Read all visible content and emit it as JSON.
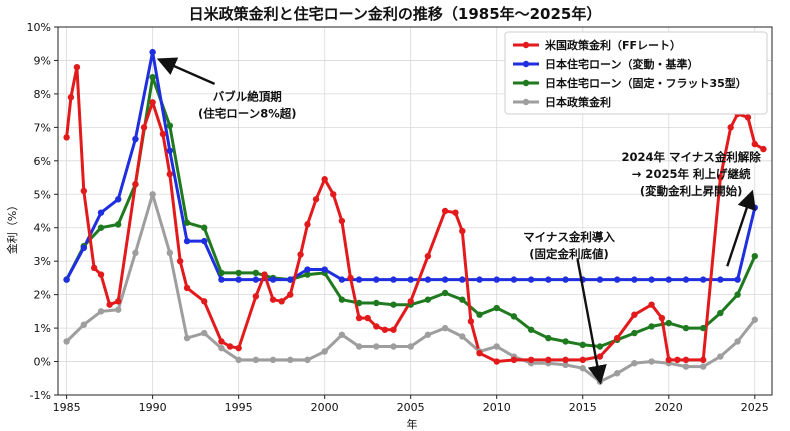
{
  "chart_data": {
    "type": "line",
    "title": "日米政策金利と住宅ローン金利の推移（1985年～2025年）",
    "xlabel": "年",
    "ylabel": "金利（%）",
    "xlim": [
      1984.5,
      2026.0
    ],
    "ylim": [
      -1,
      10
    ],
    "x_ticks": [
      1985,
      1990,
      1995,
      2000,
      2005,
      2010,
      2015,
      2020,
      2025
    ],
    "y_ticks": [
      -1,
      0,
      1,
      2,
      3,
      4,
      5,
      6,
      7,
      8,
      9,
      10
    ],
    "y_tick_labels": [
      "-1%",
      "0%",
      "1%",
      "2%",
      "3%",
      "4%",
      "5%",
      "6%",
      "7%",
      "8%",
      "9%",
      "10%"
    ],
    "grid": true,
    "legend_position": "top-right",
    "series": [
      {
        "name": "米国政策金利（FFレート）",
        "color": "#e31a1c",
        "x": [
          1985,
          1985.25,
          1985.6,
          1986,
          1986.6,
          1987,
          1987.5,
          1988,
          1989,
          1989.5,
          1990,
          1990.6,
          1991,
          1991.6,
          1992,
          1993,
          1994,
          1994.5,
          1995,
          1996,
          1996.5,
          1997,
          1997.5,
          1998,
          1998.6,
          1999,
          1999.5,
          2000,
          2000.5,
          2001,
          2001.5,
          2002,
          2002.5,
          2003,
          2003.5,
          2004,
          2005,
          2006,
          2007,
          2007.6,
          2008,
          2008.5,
          2009,
          2010,
          2011,
          2012,
          2013,
          2014,
          2015,
          2016,
          2017,
          2018,
          2019,
          2019.6,
          2020,
          2020.5,
          2021,
          2022,
          2023,
          2023.6,
          2024,
          2024.6,
          2025,
          2025.5
        ],
        "values": [
          6.7,
          7.9,
          8.8,
          5.1,
          2.8,
          2.6,
          1.7,
          1.8,
          5.3,
          7.0,
          7.75,
          6.8,
          5.6,
          3.0,
          2.2,
          1.8,
          0.6,
          0.45,
          0.4,
          1.95,
          2.6,
          1.85,
          1.8,
          2.0,
          3.2,
          4.1,
          4.85,
          5.45,
          5.0,
          4.2,
          2.5,
          1.3,
          1.3,
          1.05,
          0.95,
          0.95,
          1.8,
          3.15,
          4.5,
          4.45,
          3.9,
          1.2,
          0.25,
          0.0,
          0.05,
          0.05,
          0.05,
          0.05,
          0.05,
          0.15,
          0.7,
          1.4,
          1.7,
          1.3,
          0.05,
          0.05,
          0.05,
          0.05,
          5.5,
          7.0,
          7.4,
          7.3,
          6.5,
          6.35
        ]
      },
      {
        "name": "日本住宅ローン（変動・基準）",
        "color": "#1f2fe0",
        "x": [
          1985,
          1986,
          1987,
          1988,
          1989,
          1990,
          1991,
          1992,
          1993,
          1994,
          1995,
          1996,
          1997,
          1998,
          1999,
          2000,
          2001,
          2002,
          2003,
          2004,
          2005,
          2006,
          2007,
          2008,
          2009,
          2010,
          2011,
          2012,
          2013,
          2014,
          2015,
          2016,
          2017,
          2018,
          2019,
          2020,
          2021,
          2022,
          2023,
          2024,
          2025
        ],
        "values": [
          2.45,
          3.4,
          4.45,
          4.85,
          6.65,
          9.25,
          6.3,
          3.6,
          3.6,
          2.45,
          2.45,
          2.45,
          2.45,
          2.45,
          2.75,
          2.75,
          2.45,
          2.45,
          2.45,
          2.45,
          2.45,
          2.45,
          2.45,
          2.45,
          2.45,
          2.45,
          2.45,
          2.45,
          2.45,
          2.45,
          2.45,
          2.45,
          2.45,
          2.45,
          2.45,
          2.45,
          2.45,
          2.45,
          2.45,
          2.45,
          4.6
        ]
      },
      {
        "name": "日本住宅ローン（固定・フラット35型）",
        "color": "#1f7a1f",
        "x": [
          1985,
          1986,
          1987,
          1988,
          1989,
          1990,
          1991,
          1992,
          1993,
          1994,
          1995,
          1996,
          1997,
          1998,
          1999,
          2000,
          2001,
          2002,
          2003,
          2004,
          2005,
          2006,
          2007,
          2008,
          2009,
          2010,
          2011,
          2012,
          2013,
          2014,
          2015,
          2016,
          2017,
          2018,
          2019,
          2020,
          2021,
          2022,
          2023,
          2024,
          2025
        ],
        "values": [
          2.45,
          3.45,
          4.0,
          4.1,
          5.3,
          8.5,
          7.05,
          4.15,
          4.0,
          2.65,
          2.65,
          2.65,
          2.5,
          2.45,
          2.6,
          2.65,
          1.85,
          1.75,
          1.75,
          1.7,
          1.7,
          1.85,
          2.05,
          1.85,
          1.4,
          1.6,
          1.35,
          0.95,
          0.7,
          0.6,
          0.5,
          0.45,
          0.65,
          0.85,
          1.05,
          1.15,
          1.0,
          1.0,
          1.45,
          2.0,
          3.15
        ]
      },
      {
        "name": "日本政策金利",
        "color": "#9e9e9e",
        "x": [
          1985,
          1986,
          1987,
          1988,
          1989,
          1990,
          1991,
          1992,
          1993,
          1994,
          1995,
          1996,
          1997,
          1998,
          1999,
          2000,
          2001,
          2002,
          2003,
          2004,
          2005,
          2006,
          2007,
          2008,
          2009,
          2010,
          2011,
          2012,
          2013,
          2014,
          2015,
          2016,
          2017,
          2018,
          2019,
          2020,
          2021,
          2022,
          2023,
          2024,
          2025
        ],
        "values": [
          0.6,
          1.1,
          1.5,
          1.55,
          3.25,
          5.0,
          3.25,
          0.7,
          0.85,
          0.4,
          0.05,
          0.05,
          0.05,
          0.05,
          0.05,
          0.3,
          0.8,
          0.45,
          0.45,
          0.45,
          0.45,
          0.8,
          1.0,
          0.75,
          0.3,
          0.45,
          0.15,
          -0.05,
          -0.05,
          -0.1,
          -0.2,
          -0.6,
          -0.35,
          -0.05,
          0.0,
          -0.05,
          -0.15,
          -0.15,
          0.15,
          0.6,
          1.25
        ]
      }
    ],
    "annotations": [
      {
        "lines": [
          "バブル絶頂期",
          "(住宅ローン8%超)"
        ],
        "target": [
          1990.5,
          9.0
        ],
        "text_at": [
          1995.5,
          7.8
        ]
      },
      {
        "lines": [
          "マイナス金利導入",
          "(固定金利底値)"
        ],
        "target": [
          2016,
          -0.55
        ],
        "text_at": [
          2014.2,
          3.6
        ]
      },
      {
        "lines": [
          "2024年 マイナス金利解除",
          "→ 2025年 利上げ継続",
          "(変動金利上昇開始)"
        ],
        "target": [
          2024.8,
          5.0
        ],
        "text_at": [
          2021.3,
          6.0
        ]
      }
    ]
  }
}
